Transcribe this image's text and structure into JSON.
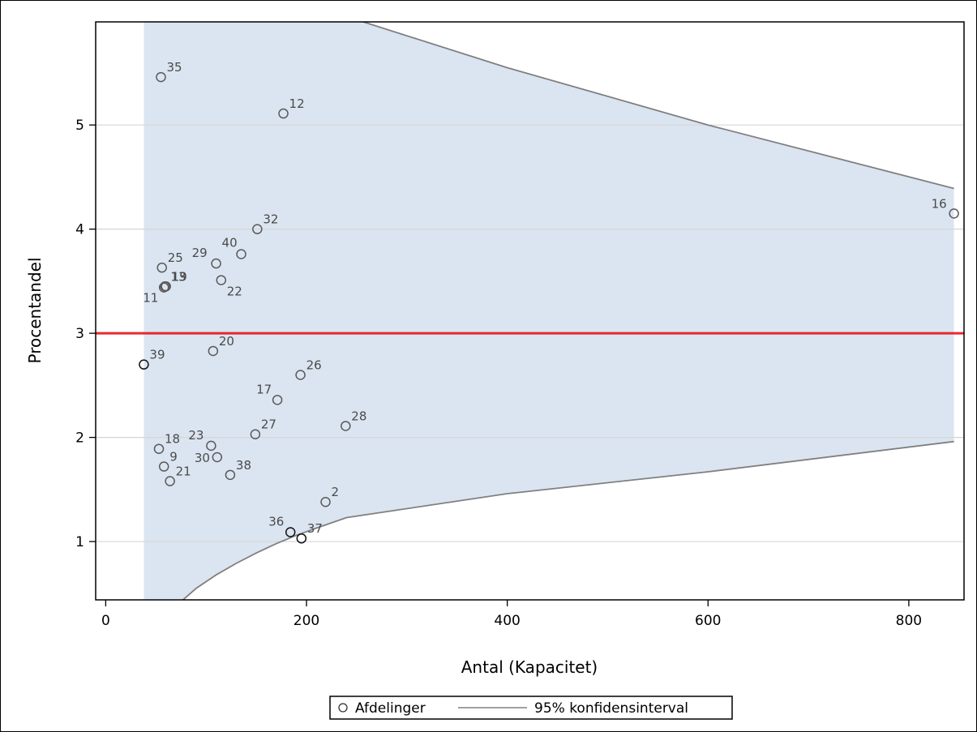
{
  "chart_data": {
    "type": "scatter",
    "title": "",
    "xlabel": "Antal (Kapacitet)",
    "ylabel": "Procentandel",
    "xlim": [
      -10,
      855
    ],
    "ylim": [
      0.44,
      5.99
    ],
    "x_ticks": [
      0,
      200,
      400,
      600,
      800
    ],
    "y_ticks": [
      1,
      2,
      3,
      4,
      5
    ],
    "grid": "horizontal",
    "reference_line": {
      "y": 3,
      "color": "#e8141c"
    },
    "band_color": "#dbe5f1",
    "line_color": "#808080",
    "legend": {
      "placement": "bottom-center",
      "entries": [
        "Afdelinger",
        "95% konfidensinterval"
      ]
    },
    "points": [
      {
        "label": "35",
        "x": 55,
        "y": 5.46
      },
      {
        "label": "12",
        "x": 177,
        "y": 5.11
      },
      {
        "label": "16",
        "x": 845,
        "y": 4.15
      },
      {
        "label": "32",
        "x": 151,
        "y": 4.0
      },
      {
        "label": "40",
        "x": 135,
        "y": 3.76
      },
      {
        "label": "29",
        "x": 110,
        "y": 3.67
      },
      {
        "label": "25",
        "x": 56,
        "y": 3.63
      },
      {
        "label": "22",
        "x": 115,
        "y": 3.51
      },
      {
        "label": "13",
        "x": 59,
        "y": 3.45
      },
      {
        "label": "19",
        "x": 60,
        "y": 3.45
      },
      {
        "label": "11",
        "x": 58,
        "y": 3.44
      },
      {
        "label": "20",
        "x": 107,
        "y": 2.83
      },
      {
        "label": "39",
        "x": 38,
        "y": 2.7
      },
      {
        "label": "26",
        "x": 194,
        "y": 2.6
      },
      {
        "label": "17",
        "x": 171,
        "y": 2.36
      },
      {
        "label": "28",
        "x": 239,
        "y": 2.11
      },
      {
        "label": "27",
        "x": 149,
        "y": 2.03
      },
      {
        "label": "23",
        "x": 105,
        "y": 1.92
      },
      {
        "label": "18",
        "x": 53,
        "y": 1.89
      },
      {
        "label": "30",
        "x": 111,
        "y": 1.81
      },
      {
        "label": "9",
        "x": 58,
        "y": 1.72
      },
      {
        "label": "38",
        "x": 124,
        "y": 1.64
      },
      {
        "label": "21",
        "x": 64,
        "y": 1.58
      },
      {
        "label": "2",
        "x": 219,
        "y": 1.38
      },
      {
        "label": "36",
        "x": 184,
        "y": 1.09
      },
      {
        "label": "37",
        "x": 195,
        "y": 1.03
      }
    ],
    "ci_upper": [
      {
        "x": 38,
        "y": 7.2
      },
      {
        "x": 100,
        "y": 6.72
      },
      {
        "x": 150,
        "y": 6.4
      },
      {
        "x": 200,
        "y": 6.18
      },
      {
        "x": 250,
        "y": 6.01
      },
      {
        "x": 400,
        "y": 5.55
      },
      {
        "x": 600,
        "y": 5.0
      },
      {
        "x": 845,
        "y": 4.39
      }
    ],
    "ci_lower": [
      {
        "x": 38,
        "y": 0.0
      },
      {
        "x": 77,
        "y": 0.44
      },
      {
        "x": 90,
        "y": 0.55
      },
      {
        "x": 110,
        "y": 0.68
      },
      {
        "x": 130,
        "y": 0.79
      },
      {
        "x": 150,
        "y": 0.89
      },
      {
        "x": 170,
        "y": 0.98
      },
      {
        "x": 190,
        "y": 1.06
      },
      {
        "x": 210,
        "y": 1.13
      },
      {
        "x": 240,
        "y": 1.23
      },
      {
        "x": 400,
        "y": 1.46
      },
      {
        "x": 600,
        "y": 1.67
      },
      {
        "x": 845,
        "y": 1.96
      }
    ]
  }
}
